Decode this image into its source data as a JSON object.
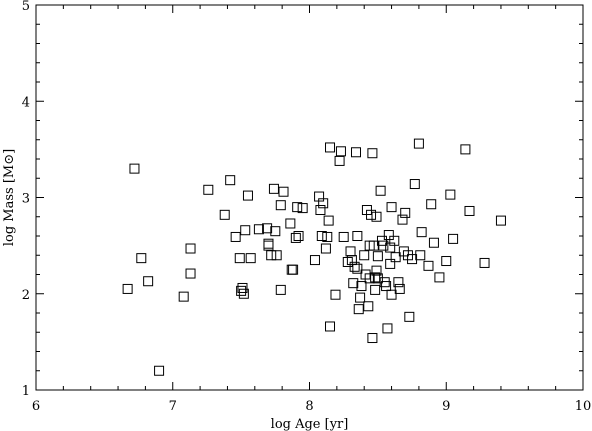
{
  "chart_data": {
    "type": "scatter",
    "xlabel": "log Age [yr]",
    "ylabel": "log Mass [M⊙]",
    "xlim": [
      6,
      10
    ],
    "ylim": [
      1,
      5
    ],
    "xticks": [
      "6",
      "7",
      "8",
      "9",
      "10"
    ],
    "yticks": [
      "1",
      "2",
      "3",
      "4",
      "5"
    ],
    "marker": "open-square",
    "grid": false,
    "points": [
      [
        6.67,
        2.05
      ],
      [
        6.72,
        3.3
      ],
      [
        6.77,
        2.37
      ],
      [
        6.82,
        2.13
      ],
      [
        6.9,
        1.2
      ],
      [
        7.08,
        1.97
      ],
      [
        7.13,
        2.47
      ],
      [
        7.13,
        2.21
      ],
      [
        7.26,
        3.08
      ],
      [
        7.38,
        2.82
      ],
      [
        7.42,
        3.18
      ],
      [
        7.46,
        2.59
      ],
      [
        7.49,
        2.37
      ],
      [
        7.5,
        2.03
      ],
      [
        7.51,
        2.06
      ],
      [
        7.52,
        2.0
      ],
      [
        7.53,
        2.66
      ],
      [
        7.55,
        3.02
      ],
      [
        7.57,
        2.37
      ],
      [
        7.63,
        2.67
      ],
      [
        7.69,
        2.68
      ],
      [
        7.7,
        2.5
      ],
      [
        7.7,
        2.52
      ],
      [
        7.72,
        2.4
      ],
      [
        7.74,
        3.09
      ],
      [
        7.75,
        2.65
      ],
      [
        7.76,
        2.4
      ],
      [
        7.79,
        2.04
      ],
      [
        7.79,
        2.92
      ],
      [
        7.81,
        3.06
      ],
      [
        7.86,
        2.73
      ],
      [
        7.87,
        2.25
      ],
      [
        7.88,
        2.25
      ],
      [
        7.9,
        2.58
      ],
      [
        7.91,
        2.9
      ],
      [
        7.92,
        2.6
      ],
      [
        7.95,
        2.89
      ],
      [
        8.04,
        2.35
      ],
      [
        8.07,
        3.01
      ],
      [
        8.08,
        2.87
      ],
      [
        8.09,
        2.6
      ],
      [
        8.1,
        2.94
      ],
      [
        8.12,
        2.47
      ],
      [
        8.13,
        2.59
      ],
      [
        8.14,
        2.76
      ],
      [
        8.15,
        1.66
      ],
      [
        8.15,
        3.52
      ],
      [
        8.19,
        1.99
      ],
      [
        8.22,
        3.38
      ],
      [
        8.23,
        3.48
      ],
      [
        8.25,
        2.59
      ],
      [
        8.28,
        2.33
      ],
      [
        8.3,
        2.44
      ],
      [
        8.31,
        2.35
      ],
      [
        8.32,
        2.11
      ],
      [
        8.33,
        2.28
      ],
      [
        8.34,
        3.47
      ],
      [
        8.35,
        2.6
      ],
      [
        8.35,
        2.26
      ],
      [
        8.36,
        1.84
      ],
      [
        8.37,
        1.96
      ],
      [
        8.38,
        2.08
      ],
      [
        8.4,
        2.4
      ],
      [
        8.41,
        2.2
      ],
      [
        8.42,
        2.87
      ],
      [
        8.43,
        1.87
      ],
      [
        8.44,
        2.16
      ],
      [
        8.44,
        2.5
      ],
      [
        8.45,
        2.82
      ],
      [
        8.46,
        3.46
      ],
      [
        8.46,
        1.54
      ],
      [
        8.47,
        2.5
      ],
      [
        8.48,
        2.17
      ],
      [
        8.48,
        2.04
      ],
      [
        8.49,
        2.24
      ],
      [
        8.49,
        2.8
      ],
      [
        8.5,
        2.39
      ],
      [
        8.5,
        2.16
      ],
      [
        8.52,
        3.07
      ],
      [
        8.53,
        2.55
      ],
      [
        8.54,
        2.5
      ],
      [
        8.55,
        2.12
      ],
      [
        8.56,
        2.08
      ],
      [
        8.57,
        1.64
      ],
      [
        8.58,
        2.61
      ],
      [
        8.59,
        2.48
      ],
      [
        8.59,
        2.31
      ],
      [
        8.6,
        1.99
      ],
      [
        8.6,
        2.9
      ],
      [
        8.62,
        2.55
      ],
      [
        8.63,
        2.38
      ],
      [
        8.65,
        2.12
      ],
      [
        8.66,
        2.05
      ],
      [
        8.68,
        2.77
      ],
      [
        8.69,
        2.44
      ],
      [
        8.7,
        2.84
      ],
      [
        8.72,
        2.4
      ],
      [
        8.73,
        1.76
      ],
      [
        8.75,
        2.36
      ],
      [
        8.77,
        3.14
      ],
      [
        8.8,
        3.56
      ],
      [
        8.81,
        2.4
      ],
      [
        8.82,
        2.64
      ],
      [
        8.87,
        2.29
      ],
      [
        8.89,
        2.93
      ],
      [
        8.91,
        2.53
      ],
      [
        8.95,
        2.17
      ],
      [
        9.0,
        2.34
      ],
      [
        9.03,
        3.03
      ],
      [
        9.05,
        2.57
      ],
      [
        9.14,
        3.5
      ],
      [
        9.17,
        2.86
      ],
      [
        9.28,
        2.32
      ],
      [
        9.4,
        2.76
      ]
    ]
  }
}
